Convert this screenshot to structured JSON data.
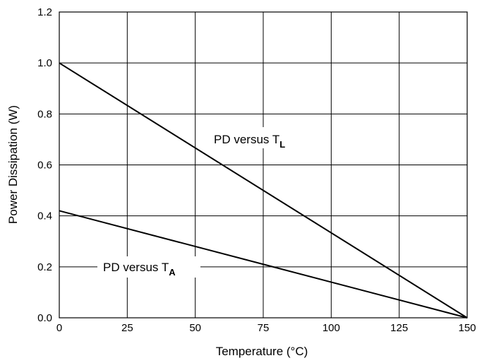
{
  "chart_data": {
    "type": "line",
    "title": "",
    "xlabel": "Temperature (°C)",
    "ylabel": "Power Dissipation (W)",
    "xlim": [
      0,
      150
    ],
    "ylim": [
      0,
      1.2
    ],
    "x_ticks": [
      "0",
      "25",
      "50",
      "75",
      "100",
      "125",
      "150"
    ],
    "y_ticks": [
      "0.0",
      "0.2",
      "0.4",
      "0.6",
      "0.8",
      "1.0",
      "1.2"
    ],
    "grid": true,
    "series": [
      {
        "x": [
          0,
          150
        ],
        "y": [
          1.0,
          0.0
        ]
      },
      {
        "x": [
          0,
          150
        ],
        "y": [
          0.42,
          0.0
        ]
      }
    ],
    "annotations": [
      {
        "main": "PD versus T",
        "sub": "L"
      },
      {
        "main": "PD versus T",
        "sub": "A"
      }
    ]
  }
}
